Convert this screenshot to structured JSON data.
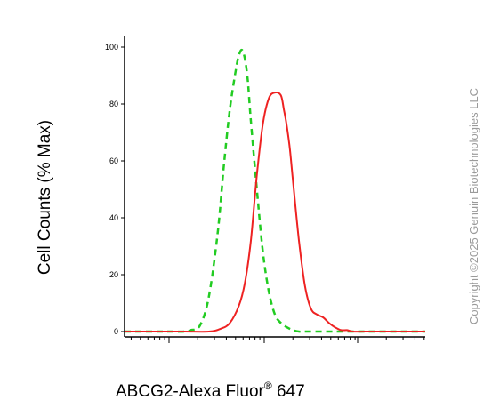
{
  "chart_data": {
    "type": "line",
    "title": "",
    "xlabel": "ABCG2-Alexa Fluor",
    "xlabel_superscript": "®",
    "xlabel_suffix": " 647",
    "ylabel": "Cell Counts (% Max)",
    "ylim": [
      0,
      100
    ],
    "yticks": [
      "0",
      "20",
      "40",
      "60",
      "80",
      "100"
    ],
    "ytick_values": [
      0,
      20,
      40,
      60,
      80,
      100
    ],
    "xscale": "log",
    "grid": false,
    "legend": "none",
    "series": [
      {
        "style": "dashed",
        "color": "#22cc22",
        "x": [
          0,
          5,
          10,
          15,
          20,
          22,
          25,
          28,
          31,
          33,
          35,
          37,
          38,
          39,
          40,
          41,
          42,
          44,
          46,
          48,
          50,
          52,
          54,
          56,
          58,
          60,
          62,
          64,
          68,
          75,
          85,
          100
        ],
        "y": [
          0,
          0,
          0,
          0,
          0,
          0.5,
          2,
          12,
          35,
          58,
          78,
          92,
          97,
          99,
          96,
          88,
          74,
          50,
          28,
          14,
          6,
          3,
          1.5,
          0.5,
          0,
          0,
          0,
          0,
          0,
          0,
          0,
          0
        ]
      },
      {
        "style": "solid",
        "color": "#ee2222",
        "x": [
          0,
          10,
          20,
          28,
          32,
          35,
          38,
          40,
          42,
          44,
          46,
          48,
          50,
          52,
          53,
          54,
          55,
          56,
          58,
          60,
          62,
          64,
          66,
          68,
          70,
          72,
          74,
          76,
          80,
          85,
          90,
          100
        ],
        "y": [
          0,
          0,
          0,
          0,
          1,
          3,
          9,
          17,
          32,
          55,
          73,
          82,
          84,
          83,
          78,
          72,
          64,
          53,
          32,
          16,
          8,
          6,
          5,
          3,
          1.5,
          0.5,
          0.5,
          0,
          0,
          0,
          0,
          0
        ]
      }
    ]
  },
  "watermark": "Copyright ©2025 Genuin Biotechnologies LLC"
}
